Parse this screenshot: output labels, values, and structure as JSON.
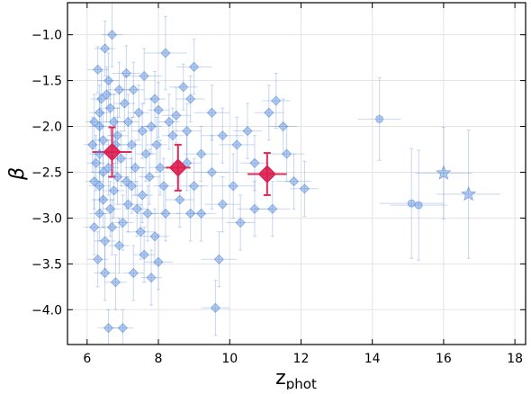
{
  "chart_data": {
    "type": "scatter",
    "xlabel": "z",
    "xlabel_sub": "phot",
    "ylabel": "β",
    "xlim": [
      5.45,
      18.3
    ],
    "ylim": [
      -4.38,
      -0.65
    ],
    "xticks": [
      6,
      8,
      10,
      12,
      14,
      16,
      18
    ],
    "yticks": [
      -1.0,
      -1.5,
      -2.0,
      -2.5,
      -3.0,
      -3.5,
      -4.0
    ],
    "xtick_labels": [
      "6",
      "8",
      "10",
      "12",
      "14",
      "16",
      "18"
    ],
    "ytick_labels": [
      "−1.0",
      "−1.5",
      "−2.0",
      "−2.5",
      "−3.0",
      "−3.5",
      "−4.0"
    ],
    "grid": true,
    "colors": {
      "points": "#5b8ddb",
      "stacked": "#dc2050"
    },
    "series": [
      {
        "marker": "diamond",
        "points": [
          [
            6.3,
            -1.38,
            0.3,
            0.25
          ],
          [
            6.5,
            -1.15,
            0.3,
            0.3
          ],
          [
            6.7,
            -1.0,
            0.3,
            0.35
          ],
          [
            7.1,
            -1.42,
            0.4,
            0.3
          ],
          [
            7.6,
            -1.45,
            0.5,
            0.3
          ],
          [
            8.2,
            -1.2,
            0.6,
            0.4
          ],
          [
            9.0,
            -1.35,
            0.5,
            0.3
          ],
          [
            8.7,
            -1.57,
            0.4,
            0.25
          ],
          [
            8.9,
            -1.7,
            0.4,
            0.25
          ],
          [
            9.5,
            -1.85,
            0.5,
            0.3
          ],
          [
            8.5,
            -1.88,
            0.4,
            0.3
          ],
          [
            8.0,
            -1.82,
            0.3,
            0.3
          ],
          [
            7.8,
            -2.0,
            0.3,
            0.3
          ],
          [
            8.8,
            -2.05,
            0.4,
            0.3
          ],
          [
            9.8,
            -2.1,
            0.6,
            0.3
          ],
          [
            10.2,
            -2.2,
            0.5,
            0.3
          ],
          [
            9.2,
            -2.3,
            0.5,
            0.3
          ],
          [
            8.8,
            -2.4,
            0.4,
            0.3
          ],
          [
            9.5,
            -2.5,
            0.5,
            0.4
          ],
          [
            10.1,
            -2.65,
            0.6,
            0.35
          ],
          [
            9.8,
            -2.85,
            0.5,
            0.3
          ],
          [
            9.2,
            -2.95,
            0.4,
            0.3
          ],
          [
            8.6,
            -2.8,
            0.4,
            0.3
          ],
          [
            8.2,
            -2.95,
            0.4,
            0.3
          ],
          [
            7.9,
            -3.2,
            0.4,
            0.3
          ],
          [
            7.5,
            -3.15,
            0.4,
            0.3
          ],
          [
            8.0,
            -3.48,
            0.4,
            0.3
          ],
          [
            7.8,
            -3.65,
            0.3,
            0.3
          ],
          [
            7.3,
            -3.6,
            0.3,
            0.3
          ],
          [
            6.3,
            -3.45,
            0.3,
            0.3
          ],
          [
            6.2,
            -3.1,
            0.3,
            0.3
          ],
          [
            9.7,
            -3.45,
            0.5,
            0.3
          ],
          [
            9.6,
            -3.98,
            0.4,
            0.3
          ],
          [
            7.0,
            -4.2,
            0.3,
            0.2
          ],
          [
            6.6,
            -4.2,
            0.3,
            0.2
          ],
          [
            10.7,
            -2.9,
            0.5,
            0.3
          ],
          [
            11.1,
            -1.85,
            0.4,
            0.3
          ],
          [
            11.3,
            -1.72,
            0.4,
            0.3
          ],
          [
            11.5,
            -2.0,
            0.4,
            0.3
          ],
          [
            11.6,
            -2.3,
            0.5,
            0.3
          ],
          [
            11.8,
            -2.6,
            0.5,
            0.3
          ],
          [
            12.1,
            -2.68,
            0.4,
            0.3
          ],
          [
            11.2,
            -2.9,
            0.5,
            0.3
          ],
          [
            10.7,
            -2.4,
            0.4,
            0.3
          ],
          [
            10.5,
            -2.05,
            0.4,
            0.3
          ],
          [
            10.3,
            -3.05,
            0.4,
            0.3
          ],
          [
            6.35,
            -1.85,
            0.3,
            0.3
          ],
          [
            6.35,
            -2.0,
            0.3,
            0.3
          ],
          [
            6.45,
            -2.15,
            0.3,
            0.3
          ],
          [
            6.35,
            -2.3,
            0.3,
            0.3
          ],
          [
            6.45,
            -2.5,
            0.3,
            0.3
          ],
          [
            6.35,
            -2.65,
            0.3,
            0.3
          ],
          [
            6.45,
            -2.8,
            0.3,
            0.3
          ],
          [
            6.35,
            -2.95,
            0.3,
            0.3
          ],
          [
            6.55,
            -1.65,
            0.3,
            0.3
          ],
          [
            6.65,
            -1.8,
            0.3,
            0.3
          ],
          [
            6.75,
            -1.95,
            0.3,
            0.3
          ],
          [
            6.85,
            -2.1,
            0.3,
            0.3
          ],
          [
            6.95,
            -2.35,
            0.3,
            0.3
          ],
          [
            6.85,
            -2.55,
            0.3,
            0.3
          ],
          [
            6.75,
            -2.7,
            0.3,
            0.3
          ],
          [
            6.65,
            -2.9,
            0.3,
            0.3
          ],
          [
            7.05,
            -1.75,
            0.3,
            0.3
          ],
          [
            7.15,
            -1.95,
            0.3,
            0.3
          ],
          [
            7.25,
            -2.2,
            0.3,
            0.3
          ],
          [
            7.35,
            -2.45,
            0.3,
            0.3
          ],
          [
            7.25,
            -2.65,
            0.3,
            0.3
          ],
          [
            7.15,
            -2.85,
            0.3,
            0.3
          ],
          [
            7.45,
            -1.85,
            0.3,
            0.3
          ],
          [
            7.55,
            -2.05,
            0.3,
            0.3
          ],
          [
            7.65,
            -2.3,
            0.3,
            0.3
          ],
          [
            7.75,
            -2.55,
            0.3,
            0.3
          ],
          [
            7.55,
            -2.75,
            0.3,
            0.3
          ],
          [
            7.95,
            -2.2,
            0.3,
            0.3
          ],
          [
            8.05,
            -2.45,
            0.3,
            0.3
          ],
          [
            8.15,
            -2.65,
            0.3,
            0.3
          ],
          [
            6.25,
            -2.4,
            0.25,
            0.3
          ],
          [
            6.15,
            -2.2,
            0.25,
            0.3
          ],
          [
            6.2,
            -2.6,
            0.25,
            0.3
          ],
          [
            6.6,
            -1.5,
            0.3,
            0.3
          ],
          [
            6.9,
            -1.6,
            0.3,
            0.3
          ],
          [
            6.7,
            -3.1,
            0.3,
            0.3
          ],
          [
            6.9,
            -3.3,
            0.3,
            0.3
          ],
          [
            6.5,
            -3.25,
            0.3,
            0.3
          ],
          [
            7.0,
            -3.05,
            0.3,
            0.3
          ],
          [
            6.8,
            -2.2,
            0.3,
            0.3
          ],
          [
            6.6,
            -2.45,
            0.3,
            0.3
          ],
          [
            7.1,
            -2.6,
            0.3,
            0.3
          ],
          [
            7.4,
            -2.9,
            0.3,
            0.3
          ],
          [
            7.7,
            -2.95,
            0.3,
            0.3
          ],
          [
            8.4,
            -2.1,
            0.3,
            0.3
          ],
          [
            8.3,
            -1.95,
            0.3,
            0.3
          ],
          [
            7.3,
            -1.6,
            0.3,
            0.3
          ],
          [
            6.4,
            -1.7,
            0.3,
            0.3
          ],
          [
            6.2,
            -1.95,
            0.25,
            0.3
          ],
          [
            7.9,
            -1.7,
            0.3,
            0.3
          ],
          [
            9.0,
            -2.65,
            0.4,
            0.3
          ],
          [
            8.9,
            -2.95,
            0.4,
            0.3
          ],
          [
            7.6,
            -3.4,
            0.3,
            0.3
          ],
          [
            6.5,
            -3.6,
            0.3,
            0.3
          ],
          [
            6.8,
            -3.7,
            0.3,
            0.3
          ]
        ]
      },
      {
        "marker": "circle",
        "points": [
          [
            14.2,
            -1.92,
            0.6,
            0.45
          ],
          [
            15.1,
            -2.84,
            0.9,
            0.6
          ],
          [
            15.3,
            -2.86,
            0.8,
            0.6
          ]
        ]
      },
      {
        "marker": "star",
        "points": [
          [
            16.0,
            -2.51,
            0.8,
            0.5
          ],
          [
            16.7,
            -2.74,
            0.9,
            0.7
          ]
        ]
      },
      {
        "marker": "diamond",
        "color": "stacked",
        "points": [
          [
            6.7,
            -2.28,
            0.55,
            0.27
          ],
          [
            8.55,
            -2.45,
            0.35,
            0.25
          ],
          [
            11.05,
            -2.52,
            0.55,
            0.23
          ]
        ]
      }
    ]
  }
}
